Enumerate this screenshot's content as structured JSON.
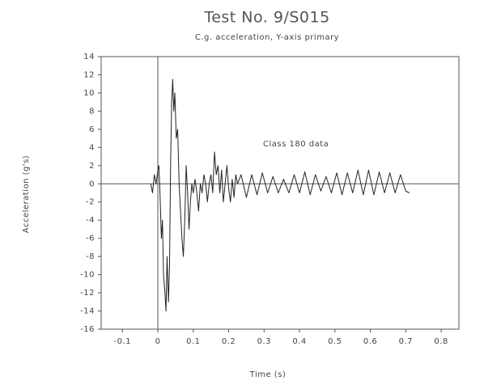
{
  "chart_data": {
    "type": "line",
    "title": "Test No. 9/S015",
    "subtitle": "C.g. acceleration, Y-axis primary",
    "x_label": "Time (s)",
    "y_label": "Acceleration (g's)",
    "annotation": "Class 180 data",
    "xlim": [
      -0.16,
      0.85
    ],
    "ylim": [
      -16,
      14
    ],
    "xticks": [
      -0.1,
      0,
      0.1,
      0.2,
      0.3,
      0.4,
      0.5,
      0.6,
      0.7,
      0.8
    ],
    "yticks": [
      -16,
      -14,
      -12,
      -10,
      -8,
      -6,
      -4,
      -2,
      0,
      2,
      4,
      6,
      8,
      10,
      12,
      14
    ],
    "x": [
      -0.02,
      -0.015,
      -0.01,
      -0.005,
      0,
      0.003,
      0.006,
      0.01,
      0.013,
      0.016,
      0.02,
      0.023,
      0.026,
      0.03,
      0.033,
      0.036,
      0.039,
      0.042,
      0.045,
      0.048,
      0.052,
      0.056,
      0.06,
      0.064,
      0.068,
      0.072,
      0.076,
      0.08,
      0.084,
      0.088,
      0.092,
      0.096,
      0.1,
      0.105,
      0.11,
      0.115,
      0.12,
      0.125,
      0.13,
      0.135,
      0.14,
      0.145,
      0.15,
      0.155,
      0.16,
      0.165,
      0.17,
      0.175,
      0.18,
      0.185,
      0.19,
      0.195,
      0.2,
      0.205,
      0.21,
      0.215,
      0.22,
      0.225,
      0.235,
      0.25,
      0.265,
      0.28,
      0.295,
      0.31,
      0.325,
      0.34,
      0.355,
      0.37,
      0.385,
      0.4,
      0.415,
      0.43,
      0.445,
      0.46,
      0.475,
      0.49,
      0.505,
      0.52,
      0.535,
      0.55,
      0.565,
      0.58,
      0.595,
      0.61,
      0.625,
      0.64,
      0.655,
      0.67,
      0.685,
      0.7,
      0.71
    ],
    "series": [
      {
        "name": "Acceleration",
        "color": "#222222",
        "values": [
          0,
          -1,
          1,
          0,
          1.5,
          2,
          -1,
          -6,
          -4,
          -10,
          -12,
          -14,
          -8,
          -13,
          -9,
          2,
          9,
          11.5,
          8,
          10,
          5,
          6,
          0,
          -3,
          -6,
          -8,
          -4,
          2,
          -1,
          -5,
          -2,
          0,
          -1,
          0.5,
          -1,
          -3,
          0,
          -1,
          1,
          0,
          -2,
          0,
          1,
          -1,
          3.5,
          1,
          2,
          -1,
          1.5,
          -2,
          0,
          2,
          -0.5,
          -2,
          0.5,
          -1.5,
          1,
          0,
          1,
          -1.5,
          1,
          -1.2,
          1.2,
          -1,
          0.8,
          -1,
          0.5,
          -1,
          1,
          -1,
          1.3,
          -1.2,
          1,
          -0.8,
          0.8,
          -1,
          1.2,
          -1.2,
          1.2,
          -1,
          1.5,
          -1.2,
          1.5,
          -1.2,
          1.3,
          -1,
          1.2,
          -1,
          1,
          -0.8,
          -1
        ]
      }
    ]
  }
}
